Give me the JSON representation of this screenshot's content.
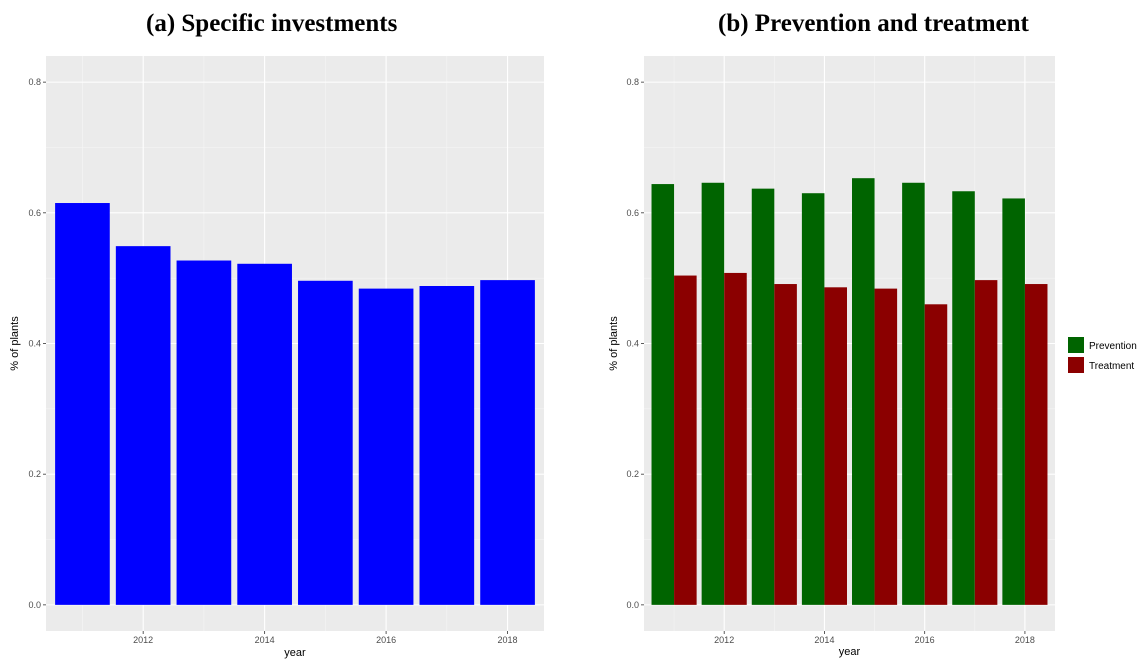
{
  "colors": {
    "panel_bg": "#EBEBEB",
    "grid_major": "#FFFFFF",
    "grid_minor": "#F5F5F5",
    "tick_text": "#4D4D4D"
  },
  "chart_data": [
    {
      "type": "bar",
      "title": "(a) Specific investments",
      "xlabel": "year",
      "ylabel": "% of plants",
      "x": [
        2011,
        2012,
        2013,
        2014,
        2015,
        2016,
        2017,
        2018
      ],
      "xticks": [
        2012,
        2014,
        2016,
        2018
      ],
      "yticks": [
        "0.0",
        "0.2",
        "0.4",
        "0.6",
        "0.8"
      ],
      "ylim": [
        -0.04,
        0.84
      ],
      "xlim": [
        2010.4,
        2018.6
      ],
      "grid": true,
      "series": [
        {
          "color": "#0000FF",
          "values": [
            0.615,
            0.549,
            0.527,
            0.522,
            0.496,
            0.484,
            0.488,
            0.497
          ]
        }
      ]
    },
    {
      "type": "bar",
      "title": "(b) Prevention and treatment",
      "xlabel": "year",
      "ylabel": "% of plants",
      "x": [
        2011,
        2012,
        2013,
        2014,
        2015,
        2016,
        2017,
        2018
      ],
      "xticks": [
        2012,
        2014,
        2016,
        2018
      ],
      "yticks": [
        "0.0",
        "0.2",
        "0.4",
        "0.6",
        "0.8"
      ],
      "ylim": [
        -0.04,
        0.84
      ],
      "xlim": [
        2010.4,
        2018.6
      ],
      "grid": true,
      "legend": "right",
      "series": [
        {
          "name": "Prevention",
          "color": "#006400",
          "values": [
            0.644,
            0.646,
            0.637,
            0.63,
            0.653,
            0.646,
            0.633,
            0.622
          ]
        },
        {
          "name": "Treatment",
          "color": "#8B0000",
          "values": [
            0.504,
            0.508,
            0.491,
            0.486,
            0.484,
            0.46,
            0.497,
            0.491
          ]
        }
      ]
    }
  ]
}
